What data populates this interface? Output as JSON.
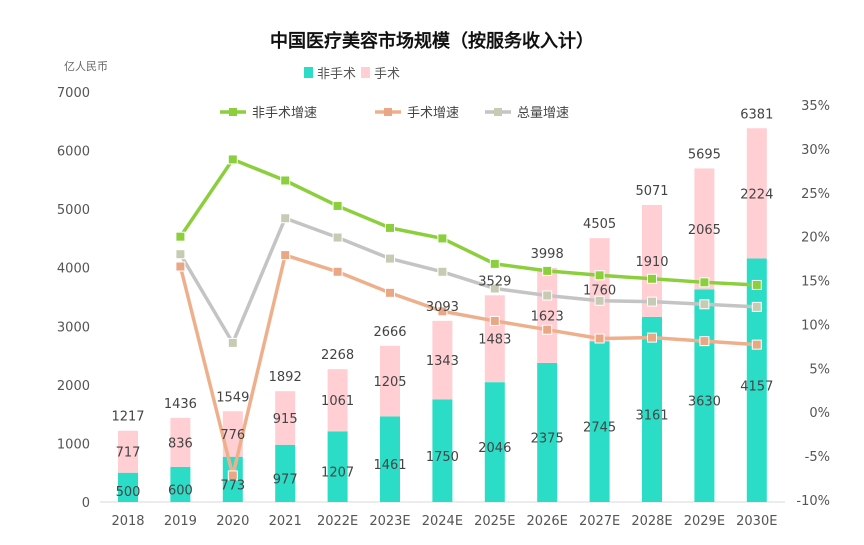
{
  "chart_data": {
    "type": "bar+line",
    "title": "中国医疗美容市场规模（按服务收入计）",
    "left_axis_unit": "亿人民币",
    "categories": [
      "2018",
      "2019",
      "2020",
      "2021",
      "2022E",
      "2023E",
      "2024E",
      "2025E",
      "2026E",
      "2027E",
      "2028E",
      "2029E",
      "2030E"
    ],
    "left_ylim": [
      0,
      7000
    ],
    "left_ticks": [
      "0",
      "1000",
      "2000",
      "3000",
      "4000",
      "5000",
      "6000",
      "7000"
    ],
    "right_ylim": [
      -10,
      35
    ],
    "right_ticks": [
      "-10%",
      "-5%",
      "0%",
      "5%",
      "10%",
      "15%",
      "20%",
      "25%",
      "30%",
      "35%"
    ],
    "bar_legend": [
      "非手术",
      "手术"
    ],
    "line_legend": [
      "非手术增速",
      "手术增速",
      "总量增速"
    ],
    "bars": [
      {
        "name": "非手术",
        "color": "#2bddc6",
        "values": [
          500,
          600,
          773,
          977,
          1207,
          1461,
          1750,
          2046,
          2375,
          2745,
          3161,
          3630,
          4157
        ]
      },
      {
        "name": "手术",
        "color": "#ffcfd4",
        "values": [
          717,
          836,
          776,
          915,
          1061,
          1205,
          1343,
          1483,
          1623,
          1760,
          1910,
          2065,
          2224
        ]
      }
    ],
    "totals": [
      1217,
      1436,
      1549,
      1892,
      2268,
      2666,
      3093,
      3529,
      3998,
      4505,
      5071,
      5695,
      6381
    ],
    "lines": [
      {
        "name": "非手术增速",
        "color": "#8ccf3c",
        "marker": "#8ccf3c",
        "unit": "%",
        "values": [
          null,
          20.0,
          28.8,
          26.4,
          23.5,
          21.0,
          19.8,
          16.9,
          16.1,
          15.6,
          15.2,
          14.8,
          14.5
        ]
      },
      {
        "name": "手术增速",
        "color": "#eeb08c",
        "marker": "#e8a886",
        "unit": "%",
        "values": [
          null,
          16.6,
          -7.2,
          17.9,
          16.0,
          13.6,
          11.5,
          10.4,
          9.4,
          8.4,
          8.5,
          8.1,
          7.7
        ]
      },
      {
        "name": "总量增速",
        "color": "#c4c4c4",
        "marker": "#c8cbb4",
        "unit": "%",
        "values": [
          null,
          18.0,
          7.9,
          22.1,
          19.9,
          17.5,
          16.0,
          14.1,
          13.3,
          12.7,
          12.6,
          12.3,
          12.0
        ]
      }
    ],
    "grid": false
  }
}
